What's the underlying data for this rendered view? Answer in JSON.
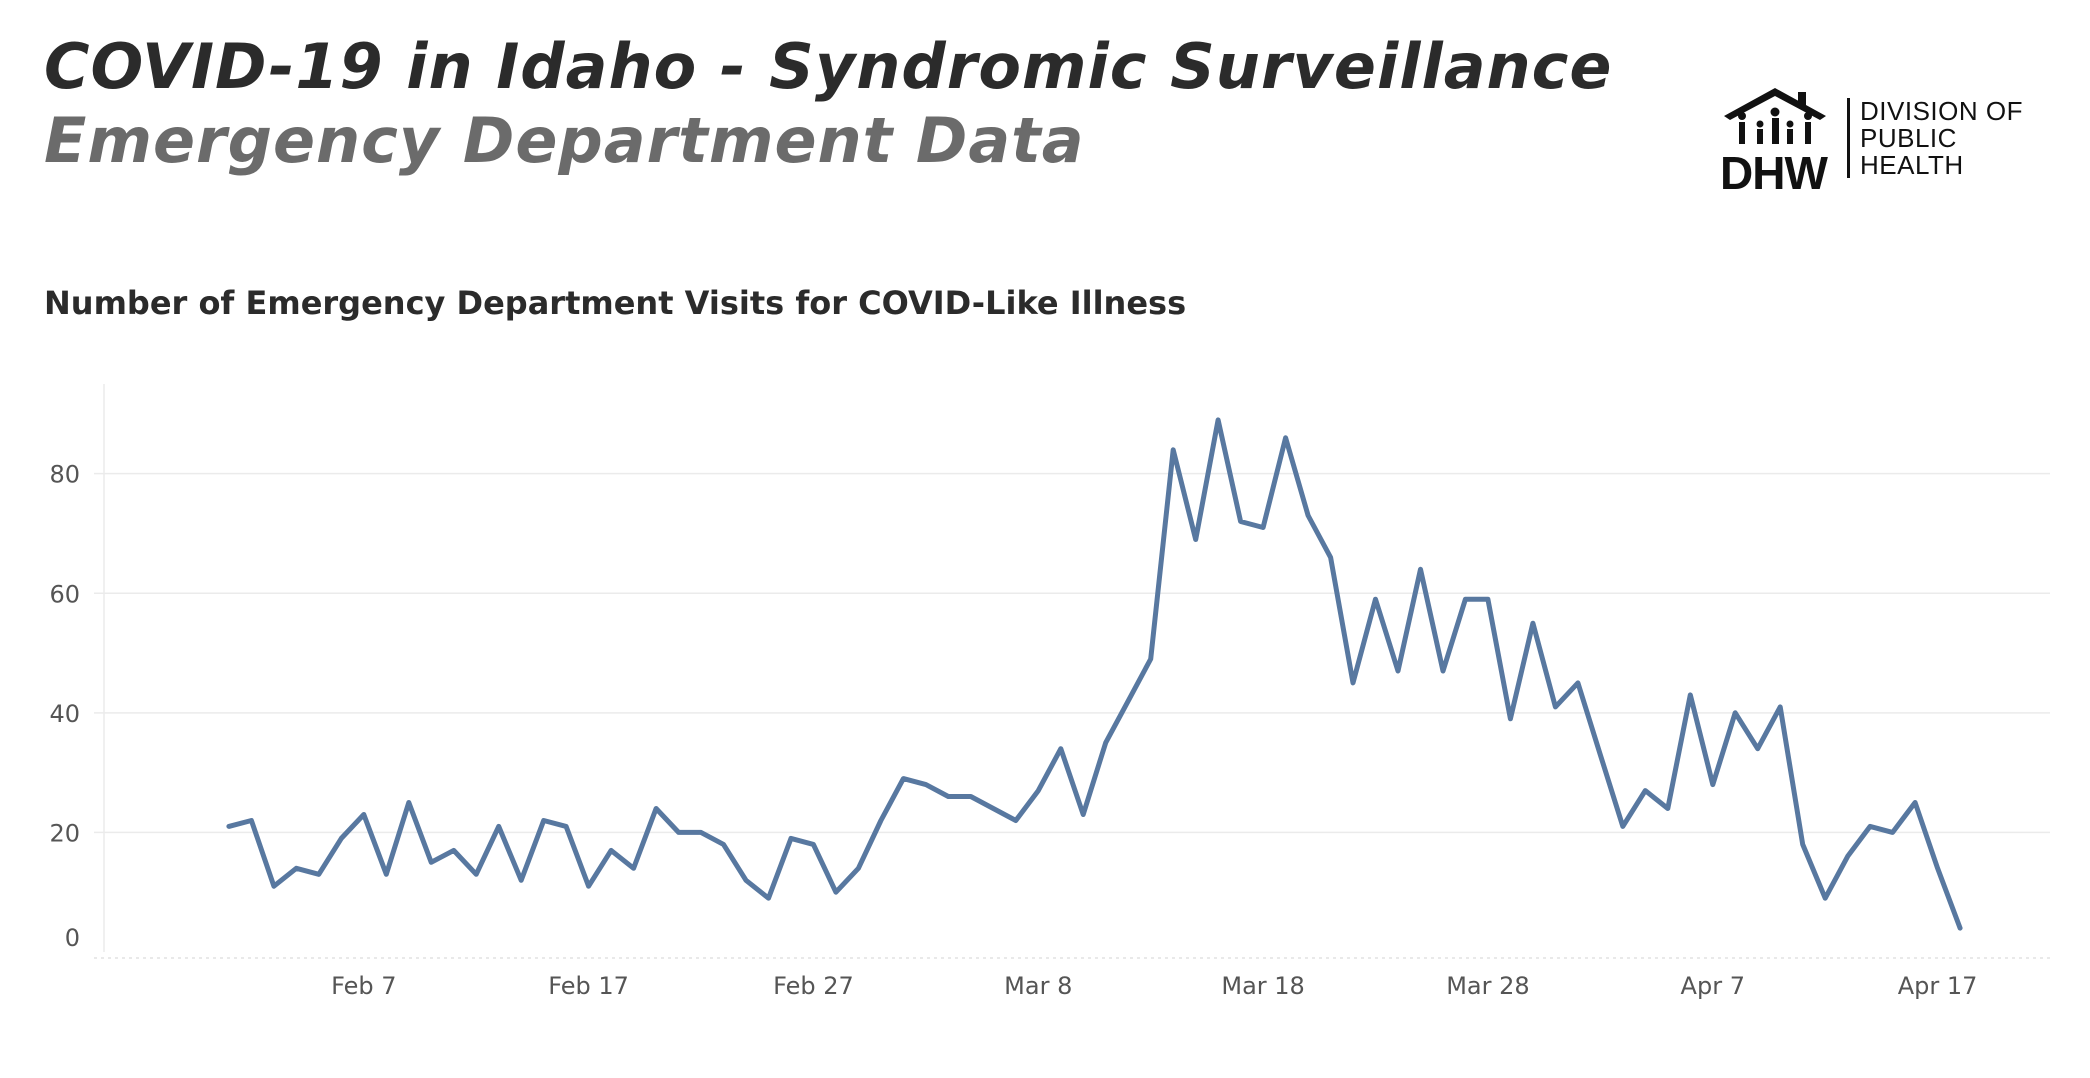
{
  "header": {
    "title": "COVID-19 in Idaho - Syndromic Surveillance",
    "subtitle": "Emergency Department Data"
  },
  "logo": {
    "abbr": "DHW",
    "lines": [
      "DIVISION OF",
      "PUBLIC",
      "HEALTH"
    ]
  },
  "colors": {
    "line": "#5878a0",
    "grid": "#ebebeb",
    "title": "#2b2b2b",
    "subtitle": "#6b6b6b"
  },
  "chart_data": {
    "type": "line",
    "title": "Number of Emergency Department Visits for COVID-Like Illness",
    "xlabel": "",
    "ylabel": "",
    "grid": true,
    "legend": "none",
    "x": [
      "2020-02-01",
      "2020-02-02",
      "2020-02-03",
      "2020-02-04",
      "2020-02-05",
      "2020-02-06",
      "2020-02-07",
      "2020-02-08",
      "2020-02-09",
      "2020-02-10",
      "2020-02-11",
      "2020-02-12",
      "2020-02-13",
      "2020-02-14",
      "2020-02-15",
      "2020-02-16",
      "2020-02-17",
      "2020-02-18",
      "2020-02-19",
      "2020-02-20",
      "2020-02-21",
      "2020-02-22",
      "2020-02-23",
      "2020-02-24",
      "2020-02-25",
      "2020-02-26",
      "2020-02-27",
      "2020-02-28",
      "2020-02-29",
      "2020-03-01",
      "2020-03-02",
      "2020-03-03",
      "2020-03-04",
      "2020-03-05",
      "2020-03-06",
      "2020-03-07",
      "2020-03-08",
      "2020-03-09",
      "2020-03-10",
      "2020-03-11",
      "2020-03-12",
      "2020-03-13",
      "2020-03-14",
      "2020-03-15",
      "2020-03-16",
      "2020-03-17",
      "2020-03-18",
      "2020-03-19",
      "2020-03-20",
      "2020-03-21",
      "2020-03-22",
      "2020-03-23",
      "2020-03-24",
      "2020-03-25",
      "2020-03-26",
      "2020-03-27",
      "2020-03-28",
      "2020-03-29",
      "2020-03-30",
      "2020-03-31",
      "2020-04-01",
      "2020-04-02",
      "2020-04-03",
      "2020-04-04",
      "2020-04-05",
      "2020-04-06",
      "2020-04-07",
      "2020-04-08",
      "2020-04-09",
      "2020-04-10",
      "2020-04-11",
      "2020-04-12",
      "2020-04-13",
      "2020-04-14",
      "2020-04-15",
      "2020-04-16",
      "2020-04-17",
      "2020-04-18"
    ],
    "series": [
      {
        "values": [
          21,
          22,
          11,
          14,
          13,
          19,
          23,
          13,
          25,
          15,
          17,
          13,
          21,
          12,
          22,
          21,
          11,
          17,
          14,
          24,
          20,
          20,
          18,
          12,
          9,
          19,
          18,
          10,
          14,
          22,
          29,
          28,
          26,
          26,
          24,
          22,
          27,
          34,
          23,
          35,
          42,
          49,
          84,
          69,
          89,
          72,
          71,
          86,
          73,
          66,
          45,
          59,
          47,
          64,
          47,
          59,
          59,
          39,
          55,
          41,
          45,
          33,
          21,
          27,
          24,
          43,
          28,
          40,
          34,
          41,
          18,
          9,
          16,
          21,
          20,
          25,
          14,
          4
        ]
      }
    ],
    "ylim": [
      0,
      95
    ],
    "y_ticks": [
      0,
      20,
      40,
      60,
      80
    ],
    "x_ticks": [
      {
        "date": "2020-02-07",
        "label": "Feb 7"
      },
      {
        "date": "2020-02-17",
        "label": "Feb 17"
      },
      {
        "date": "2020-02-27",
        "label": "Feb 27"
      },
      {
        "date": "2020-03-08",
        "label": "Mar 8"
      },
      {
        "date": "2020-03-18",
        "label": "Mar 18"
      },
      {
        "date": "2020-03-28",
        "label": "Mar 28"
      },
      {
        "date": "2020-04-07",
        "label": "Apr 7"
      },
      {
        "date": "2020-04-17",
        "label": "Apr 17"
      }
    ],
    "x_range": [
      "2020-01-26",
      "2020-04-22"
    ]
  }
}
